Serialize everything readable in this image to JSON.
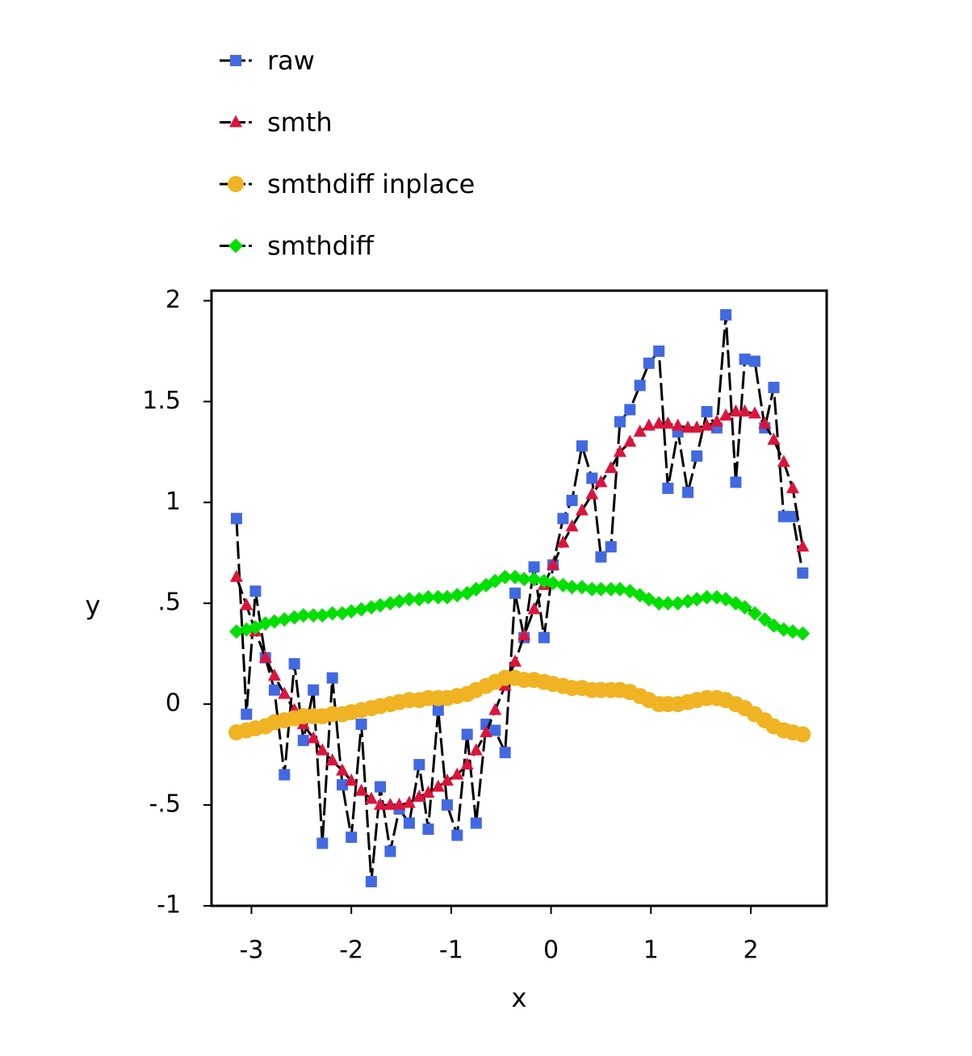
{
  "chart_data": {
    "type": "line",
    "xlabel": "x",
    "ylabel": "y",
    "xlim": [
      -3.4,
      2.76
    ],
    "ylim": [
      -1,
      2.05
    ],
    "xticks": [
      -3,
      -2,
      -1,
      0,
      1,
      2
    ],
    "yticks": [
      -1,
      {
        "value": -0.5,
        "label": "-.5"
      },
      0,
      {
        "value": 0.5,
        "label": ".5"
      },
      1,
      1.5,
      2
    ],
    "grid": false,
    "legend": "top",
    "line_color": "#000000",
    "linestyle": "dashed",
    "x": [
      -3.15,
      -3.05,
      -2.96,
      -2.86,
      -2.77,
      -2.67,
      -2.57,
      -2.48,
      -2.38,
      -2.29,
      -2.19,
      -2.09,
      -2.0,
      -1.9,
      -1.8,
      -1.71,
      -1.61,
      -1.52,
      -1.42,
      -1.32,
      -1.23,
      -1.13,
      -1.04,
      -0.94,
      -0.84,
      -0.75,
      -0.65,
      -0.56,
      -0.46,
      -0.36,
      -0.27,
      -0.17,
      -0.07,
      0.02,
      0.12,
      0.21,
      0.31,
      0.41,
      0.5,
      0.6,
      0.69,
      0.79,
      0.89,
      0.98,
      1.08,
      1.17,
      1.27,
      1.37,
      1.46,
      1.56,
      1.66,
      1.75,
      1.85,
      1.94,
      2.04,
      2.14,
      2.23,
      2.33,
      2.42,
      2.52
    ],
    "series": [
      {
        "name": "raw",
        "color": "#4169e1",
        "marker": "square",
        "values": [
          0.92,
          -0.05,
          0.56,
          0.23,
          0.07,
          -0.35,
          0.2,
          -0.18,
          0.07,
          -0.69,
          0.13,
          -0.4,
          -0.66,
          -0.1,
          -0.88,
          -0.41,
          -0.73,
          -0.52,
          -0.59,
          -0.3,
          -0.62,
          -0.03,
          -0.5,
          -0.65,
          -0.15,
          -0.59,
          -0.1,
          -0.13,
          -0.24,
          0.55,
          0.33,
          0.68,
          0.33,
          0.69,
          0.92,
          1.01,
          1.28,
          1.12,
          0.73,
          0.78,
          1.4,
          1.46,
          1.58,
          1.69,
          1.75,
          1.07,
          1.35,
          1.05,
          1.23,
          1.45,
          1.37,
          1.93,
          1.1,
          1.71,
          1.7,
          1.37,
          1.57,
          0.93,
          0.93,
          0.65
        ]
      },
      {
        "name": "smth",
        "color": "#dc143c",
        "marker": "triangle",
        "values": [
          0.63,
          0.49,
          0.36,
          0.23,
          0.14,
          0.05,
          -0.03,
          -0.1,
          -0.17,
          -0.23,
          -0.28,
          -0.33,
          -0.38,
          -0.43,
          -0.47,
          -0.5,
          -0.5,
          -0.5,
          -0.49,
          -0.46,
          -0.44,
          -0.41,
          -0.38,
          -0.35,
          -0.3,
          -0.23,
          -0.14,
          -0.03,
          0.09,
          0.21,
          0.34,
          0.47,
          0.59,
          0.69,
          0.8,
          0.88,
          0.96,
          1.04,
          1.1,
          1.17,
          1.25,
          1.3,
          1.35,
          1.38,
          1.39,
          1.39,
          1.38,
          1.37,
          1.37,
          1.38,
          1.4,
          1.43,
          1.45,
          1.45,
          1.44,
          1.39,
          1.31,
          1.2,
          1.07,
          0.78
        ]
      },
      {
        "name": "smthdiff inplace",
        "color": "#f0b323",
        "marker": "circle",
        "values": [
          -0.14,
          -0.13,
          -0.12,
          -0.11,
          -0.09,
          -0.08,
          -0.07,
          -0.06,
          -0.06,
          -0.06,
          -0.05,
          -0.05,
          -0.04,
          -0.03,
          -0.02,
          -0.01,
          0.0,
          0.01,
          0.02,
          0.02,
          0.03,
          0.03,
          0.03,
          0.04,
          0.05,
          0.07,
          0.09,
          0.11,
          0.13,
          0.13,
          0.12,
          0.12,
          0.11,
          0.1,
          0.09,
          0.08,
          0.08,
          0.07,
          0.07,
          0.07,
          0.07,
          0.06,
          0.04,
          0.02,
          0.0,
          0.0,
          0.0,
          0.01,
          0.02,
          0.03,
          0.03,
          0.02,
          0.0,
          -0.02,
          -0.05,
          -0.08,
          -0.11,
          -0.13,
          -0.14,
          -0.15
        ]
      },
      {
        "name": "smthdiff",
        "color": "#00e000",
        "marker": "diamond",
        "values": [
          0.36,
          0.37,
          0.38,
          0.4,
          0.41,
          0.42,
          0.43,
          0.44,
          0.44,
          0.44,
          0.45,
          0.45,
          0.46,
          0.47,
          0.48,
          0.49,
          0.5,
          0.51,
          0.52,
          0.52,
          0.53,
          0.53,
          0.53,
          0.54,
          0.55,
          0.57,
          0.59,
          0.61,
          0.63,
          0.63,
          0.62,
          0.62,
          0.61,
          0.6,
          0.59,
          0.58,
          0.58,
          0.57,
          0.57,
          0.57,
          0.57,
          0.56,
          0.54,
          0.52,
          0.5,
          0.5,
          0.5,
          0.51,
          0.52,
          0.53,
          0.53,
          0.52,
          0.5,
          0.48,
          0.45,
          0.42,
          0.39,
          0.37,
          0.36,
          0.35
        ]
      }
    ]
  }
}
